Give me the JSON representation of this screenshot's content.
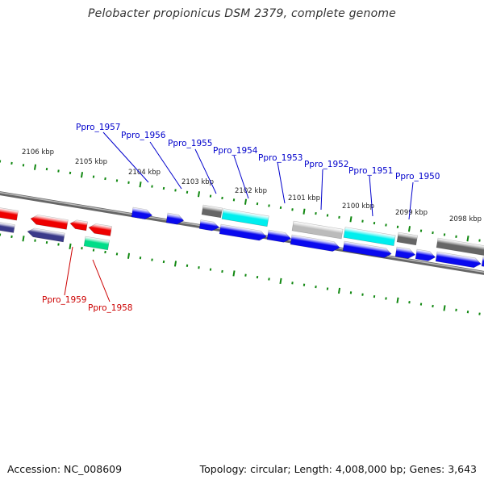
{
  "title": "Pelobacter propionicus DSM 2379, complete genome",
  "footer": {
    "accession": "Accession: NC_008609",
    "stats": "Topology: circular; Length: 4,008,000 bp; Genes: 3,643"
  },
  "colors": {
    "backbone": "#888888",
    "tick": "#118811",
    "forward_label": "#0000cc",
    "reverse_label": "#cc0000",
    "blue_gene": "#0a0aee",
    "red_gene": "#ee0000",
    "navy_gene": "#3a3a8a",
    "cyan_gene": "#00eeee",
    "green_gene": "#00dd88",
    "gray_gene": "#666666",
    "lightgray_gene": "#bbbbbb"
  },
  "kbp_labels": [
    "2106 kbp",
    "2105 kbp",
    "2104 kbp",
    "2103 kbp",
    "2102 kbp",
    "2101 kbp",
    "2100 kbp",
    "2099 kbp",
    "2098 kbp"
  ],
  "forward_labels": [
    "Ppro_1957",
    "Ppro_1956",
    "Ppro_1955",
    "Ppro_1954",
    "Ppro_1953",
    "Ppro_1952",
    "Ppro_1951",
    "Ppro_1950"
  ],
  "reverse_labels": [
    "Ppro_1959",
    "Ppro_1958"
  ]
}
